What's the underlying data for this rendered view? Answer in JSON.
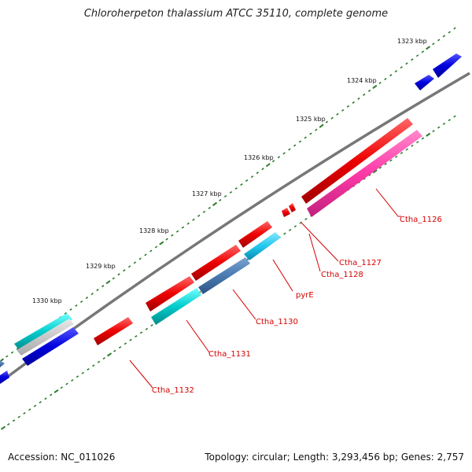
{
  "title": "Chloroherpeton thalassium ATCC 35110, complete genome",
  "accession": "Accession: NC_011026",
  "summary": "Topology: circular; Length: 3,293,456 bp; Genes: 2,757",
  "scale_labels": [
    "1323 kbp",
    "1324 kbp",
    "1325 kbp",
    "1326 kbp",
    "1327 kbp",
    "1328 kbp",
    "1329 kbp",
    "1330 kbp"
  ],
  "gene_labels": [
    "Ctha_1126",
    "Ctha_1127",
    "Ctha_1128",
    "pyrE",
    "Ctha_1130",
    "Ctha_1131",
    "Ctha_1132"
  ],
  "colors": {
    "backbone": "#777777",
    "forward_tick": "#2a7a2a",
    "label": "#d40000",
    "red_gene": "#ee0000",
    "blue_gene": "#0000dd",
    "magenta_gene": "#ff3aa8",
    "cyan_gene": "#00cccc",
    "sky_gene": "#22c8ee",
    "steel_gene": "#4a7ab0"
  }
}
